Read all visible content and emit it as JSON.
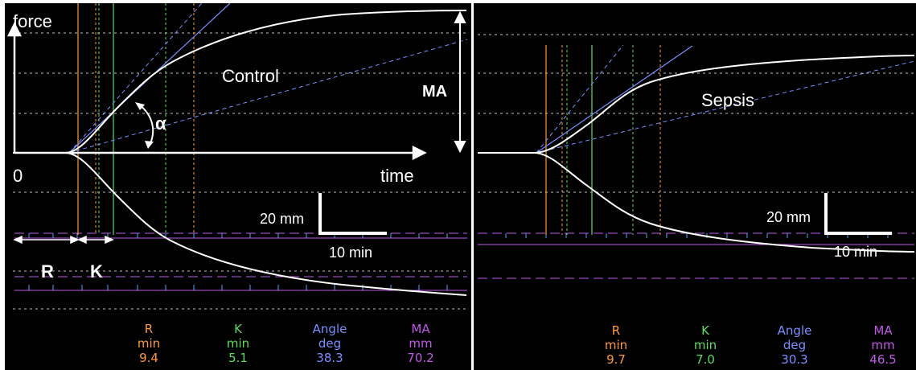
{
  "colors": {
    "r": "#ff9a3c",
    "k": "#5cdc5c",
    "angle": "#7a8fff",
    "ma": "#c158e8",
    "trace": "#ffffff",
    "grid": "#bdbdbd",
    "background": "#000000"
  },
  "chart_data": [
    {
      "type": "line",
      "title": "Control",
      "xlabel": "time",
      "ylabel": "force",
      "origin_label": "0",
      "scale": {
        "vertical": "20 mm",
        "horizontal": "10 min"
      },
      "annotations": {
        "r_label": "R",
        "k_label": "K",
        "angle_symbol": "α",
        "ma_label": "MA"
      },
      "results": [
        {
          "name": "R",
          "unit": "min",
          "value": "9.4"
        },
        {
          "name": "K",
          "unit": "min",
          "value": "5.1"
        },
        {
          "name": "Angle",
          "unit": "deg",
          "value": "38.3"
        },
        {
          "name": "MA",
          "unit": "mm",
          "value": "70.2"
        }
      ]
    },
    {
      "type": "line",
      "title": "Sepsis",
      "scale": {
        "vertical": "20 mm",
        "horizontal": "10 min"
      },
      "results": [
        {
          "name": "R",
          "unit": "min",
          "value": "9.7"
        },
        {
          "name": "K",
          "unit": "min",
          "value": "7.0"
        },
        {
          "name": "Angle",
          "unit": "deg",
          "value": "30.3"
        },
        {
          "name": "MA",
          "unit": "mm",
          "value": "46.5"
        }
      ]
    }
  ]
}
